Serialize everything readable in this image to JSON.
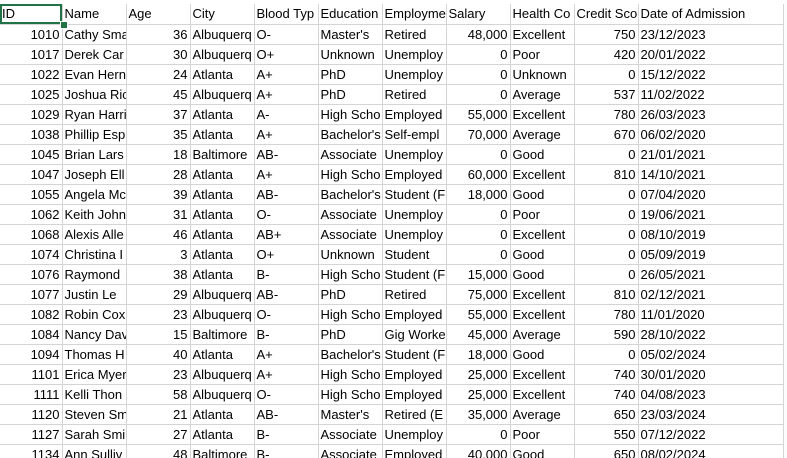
{
  "headers": [
    "ID",
    "Name",
    "Age",
    "City",
    "Blood Typ",
    "Education",
    "Employme",
    "Salary",
    "Health Co",
    "Credit Sco",
    "Date of Admission"
  ],
  "rows": [
    [
      "1010",
      "Cathy Sma",
      "36",
      "Albuquerq",
      "O-",
      "Master's",
      "Retired",
      "48,000",
      "Excellent",
      "750",
      "23/12/2023"
    ],
    [
      "1017",
      "Derek Car",
      "30",
      "Albuquerq",
      "O+",
      "Unknown",
      "Unemploy",
      "0",
      "Poor",
      "420",
      "20/01/2022"
    ],
    [
      "1022",
      "Evan Hern",
      "24",
      "Atlanta",
      "A+",
      "PhD",
      "Unemploy",
      "0",
      "Unknown",
      "0",
      "15/12/2022"
    ],
    [
      "1025",
      "Joshua Ric",
      "45",
      "Albuquerq",
      "A+",
      "PhD",
      "Retired",
      "0",
      "Average",
      "537",
      "11/02/2022"
    ],
    [
      "1029",
      "Ryan Harri",
      "37",
      "Atlanta",
      "A-",
      "High Scho",
      "Employed",
      "55,000",
      "Excellent",
      "780",
      "26/03/2023"
    ],
    [
      "1038",
      "Phillip Esp",
      "35",
      "Atlanta",
      "A+",
      "Bachelor's",
      "Self-empl",
      "70,000",
      "Average",
      "670",
      "06/02/2020"
    ],
    [
      "1045",
      "Brian Lars",
      "18",
      "Baltimore",
      "AB-",
      "Associate",
      "Unemploy",
      "0",
      "Good",
      "0",
      "21/01/2021"
    ],
    [
      "1047",
      "Joseph Ell",
      "28",
      "Atlanta",
      "A+",
      "High Scho",
      "Employed",
      "60,000",
      "Excellent",
      "810",
      "14/10/2021"
    ],
    [
      "1055",
      "Angela Mc",
      "39",
      "Atlanta",
      "AB-",
      "Bachelor's",
      "Student (F",
      "18,000",
      "Good",
      "0",
      "07/04/2020"
    ],
    [
      "1062",
      "Keith John",
      "31",
      "Atlanta",
      "O-",
      "Associate",
      "Unemploy",
      "0",
      "Poor",
      "0",
      "19/06/2021"
    ],
    [
      "1068",
      "Alexis Alle",
      "46",
      "Atlanta",
      "AB+",
      "Associate",
      "Unemploy",
      "0",
      "Excellent",
      "0",
      "08/10/2019"
    ],
    [
      "1074",
      "Christina I",
      "3",
      "Atlanta",
      "O+",
      "Unknown",
      "Student",
      "0",
      "Good",
      "0",
      "05/09/2019"
    ],
    [
      "1076",
      "Raymond",
      "38",
      "Atlanta",
      "B-",
      "High Scho",
      "Student (F",
      "15,000",
      "Good",
      "0",
      "26/05/2021"
    ],
    [
      "1077",
      "Justin Le",
      "29",
      "Albuquerq",
      "AB-",
      "PhD",
      "Retired",
      "75,000",
      "Excellent",
      "810",
      "02/12/2021"
    ],
    [
      "1082",
      "Robin Cox",
      "23",
      "Albuquerq",
      "O-",
      "High Scho",
      "Employed",
      "55,000",
      "Excellent",
      "780",
      "11/01/2020"
    ],
    [
      "1084",
      "Nancy Dav",
      "15",
      "Baltimore",
      "B-",
      "PhD",
      "Gig Worke",
      "45,000",
      "Average",
      "590",
      "28/10/2022"
    ],
    [
      "1094",
      "Thomas H",
      "40",
      "Atlanta",
      "A+",
      "Bachelor's",
      "Student (F",
      "18,000",
      "Good",
      "0",
      "05/02/2024"
    ],
    [
      "1101",
      "Erica Myer",
      "23",
      "Albuquerq",
      "A+",
      "High Scho",
      "Employed",
      "25,000",
      "Excellent",
      "740",
      "30/01/2020"
    ],
    [
      "1111",
      "Kelli Thon",
      "58",
      "Albuquerq",
      "O-",
      "High Scho",
      "Employed",
      "25,000",
      "Excellent",
      "740",
      "04/08/2023"
    ],
    [
      "1120",
      "Steven Sm",
      "21",
      "Atlanta",
      "AB-",
      "Master's",
      "Retired (E",
      "35,000",
      "Average",
      "650",
      "23/03/2024"
    ],
    [
      "1127",
      "Sarah Smi",
      "27",
      "Atlanta",
      "B-",
      "Associate",
      "Unemploy",
      "0",
      "Poor",
      "550",
      "07/12/2022"
    ],
    [
      "1134",
      "Ann Sulliv",
      "48",
      "Baltimore",
      "B-",
      "Associate",
      "Employed",
      "40,000",
      "Good",
      "650",
      "08/02/2024"
    ]
  ],
  "numeric_columns": [
    0,
    2,
    7,
    9
  ],
  "selection_color": "#217346",
  "gridline_color": "#d4d4d4"
}
